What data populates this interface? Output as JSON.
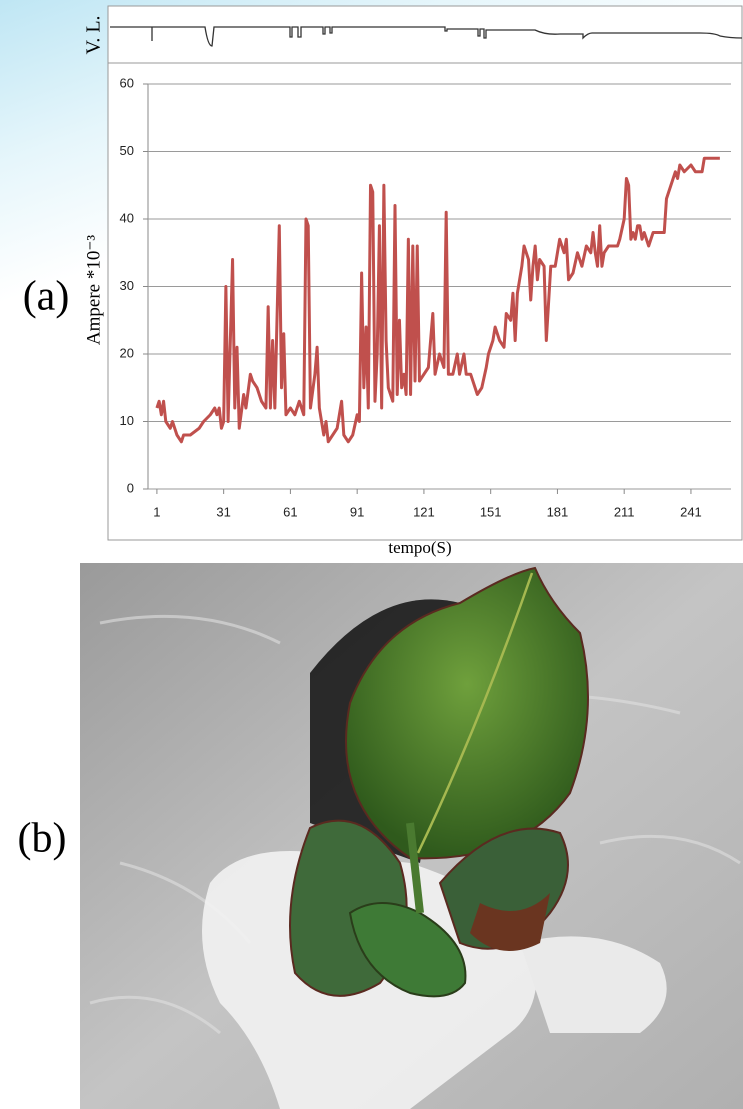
{
  "panel_labels": [
    "(a)",
    "(b)"
  ],
  "trace_label": "V. L.",
  "chart_data": {
    "type": "line",
    "x_label": "tempo(S)",
    "y_label": "Ampere *10⁻³",
    "color": "#c0504d",
    "grid": true,
    "x": [
      1,
      2,
      3,
      4,
      5,
      7,
      8,
      10,
      12,
      13,
      16,
      20,
      22,
      25,
      27,
      28,
      29,
      30,
      31,
      32,
      33,
      35,
      36,
      37,
      38,
      40,
      41,
      43,
      44,
      46,
      48,
      50,
      51,
      52,
      53,
      54,
      56,
      57,
      58,
      59,
      61,
      63,
      65,
      67,
      68,
      69,
      70,
      72,
      73,
      74,
      75,
      76,
      77,
      78,
      80,
      82,
      84,
      85,
      87,
      89,
      91,
      92,
      93,
      94,
      95,
      96,
      97,
      98,
      99,
      100,
      101,
      102,
      103,
      104,
      105,
      107,
      108,
      109,
      110,
      111,
      112,
      113,
      114,
      115,
      116,
      117,
      118,
      119,
      121,
      123,
      125,
      126,
      128,
      130,
      131,
      132,
      134,
      136,
      137,
      139,
      140,
      142,
      144,
      145,
      147,
      149,
      150,
      152,
      153,
      155,
      157,
      158,
      160,
      161,
      162,
      163,
      165,
      166,
      168,
      169,
      170,
      171,
      172,
      173,
      175,
      176,
      178,
      180,
      182,
      184,
      185,
      186,
      188,
      190,
      192,
      194,
      196,
      197,
      198,
      199,
      200,
      201,
      202,
      204,
      206,
      208,
      209,
      211,
      212,
      213,
      214,
      215,
      216,
      217,
      218,
      219,
      220,
      222,
      224,
      226,
      229,
      230,
      232,
      234,
      235,
      236,
      238,
      241,
      243,
      246,
      247,
      254
    ],
    "values": [
      12,
      13,
      11,
      13,
      10,
      9,
      10,
      8,
      7,
      8,
      8,
      9,
      10,
      11,
      12,
      11,
      12,
      9,
      10,
      30,
      10,
      34,
      12,
      21,
      9,
      14,
      12,
      17,
      16,
      15,
      13,
      12,
      27,
      12,
      22,
      12,
      39,
      15,
      23,
      11,
      12,
      11,
      13,
      11,
      40,
      39,
      12,
      17,
      21,
      12,
      10,
      8,
      10,
      7,
      8,
      9,
      13,
      8,
      7,
      8,
      11,
      10,
      32,
      15,
      24,
      12,
      45,
      44,
      13,
      20,
      39,
      12,
      45,
      22,
      15,
      13,
      42,
      14,
      25,
      15,
      17,
      14,
      37,
      14,
      36,
      16,
      36,
      16,
      17,
      18,
      26,
      17,
      20,
      18,
      41,
      17,
      17,
      20,
      17,
      20,
      17,
      17,
      15,
      14,
      15,
      18,
      20,
      22,
      24,
      22,
      21,
      26,
      25,
      29,
      22,
      29,
      33,
      36,
      34,
      28,
      33,
      36,
      31,
      34,
      33,
      22,
      33,
      33,
      37,
      35,
      37,
      31,
      32,
      35,
      33,
      36,
      35,
      38,
      35,
      33,
      39,
      33,
      35,
      36,
      36,
      36,
      37,
      40,
      46,
      45,
      37,
      38,
      37,
      39,
      39,
      37,
      38,
      36,
      38,
      38,
      38,
      43,
      45,
      47,
      46,
      48,
      47,
      48,
      47,
      47,
      49,
      49
    ],
    "xlim": [
      -3,
      259
    ],
    "ylim": [
      0,
      60
    ],
    "xticks": [
      1,
      31,
      61,
      91,
      121,
      151,
      181,
      211,
      241
    ],
    "yticks": [
      0,
      10,
      20,
      30,
      40,
      50,
      60
    ]
  }
}
